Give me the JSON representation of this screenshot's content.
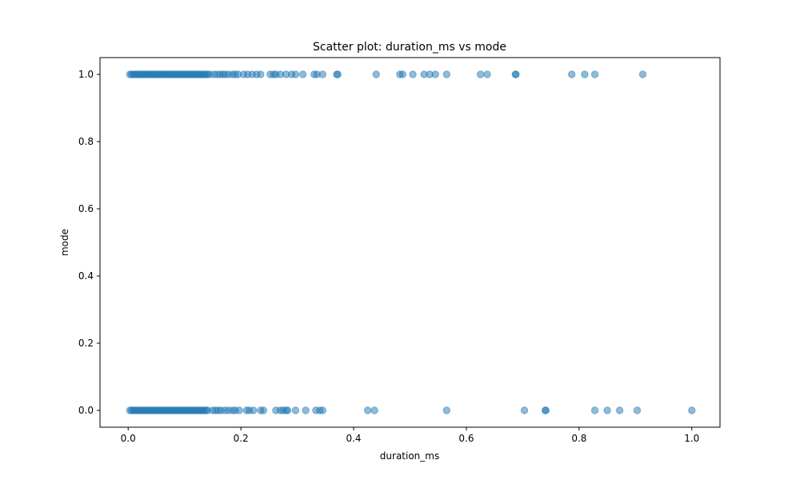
{
  "chart_data": {
    "type": "scatter",
    "title": "Scatter plot: duration_ms vs mode",
    "xlabel": "duration_ms",
    "ylabel": "mode",
    "xlim": [
      -0.05,
      1.05
    ],
    "ylim": [
      -0.05,
      1.05
    ],
    "xticks": [
      0.0,
      0.2,
      0.4,
      0.6,
      0.8,
      1.0
    ],
    "yticks": [
      0.0,
      0.2,
      0.4,
      0.6,
      0.8,
      1.0
    ],
    "xtick_labels": [
      "0.0",
      "0.2",
      "0.4",
      "0.6",
      "0.8",
      "1.0"
    ],
    "ytick_labels": [
      "0.0",
      "0.2",
      "0.4",
      "0.6",
      "0.8",
      "1.0"
    ],
    "grid": false,
    "marker_color": "#1f77b4",
    "marker_alpha": 0.5,
    "series": [
      {
        "points": [
          [
            0.003,
            1
          ],
          [
            0.006,
            1
          ],
          [
            0.009,
            1
          ],
          [
            0.012,
            1
          ],
          [
            0.015,
            1
          ],
          [
            0.018,
            1
          ],
          [
            0.021,
            1
          ],
          [
            0.024,
            1
          ],
          [
            0.027,
            1
          ],
          [
            0.03,
            1
          ],
          [
            0.033,
            1
          ],
          [
            0.036,
            1
          ],
          [
            0.039,
            1
          ],
          [
            0.042,
            1
          ],
          [
            0.045,
            1
          ],
          [
            0.048,
            1
          ],
          [
            0.051,
            1
          ],
          [
            0.054,
            1
          ],
          [
            0.057,
            1
          ],
          [
            0.06,
            1
          ],
          [
            0.063,
            1
          ],
          [
            0.066,
            1
          ],
          [
            0.069,
            1
          ],
          [
            0.072,
            1
          ],
          [
            0.075,
            1
          ],
          [
            0.078,
            1
          ],
          [
            0.081,
            1
          ],
          [
            0.084,
            1
          ],
          [
            0.087,
            1
          ],
          [
            0.09,
            1
          ],
          [
            0.093,
            1
          ],
          [
            0.096,
            1
          ],
          [
            0.099,
            1
          ],
          [
            0.102,
            1
          ],
          [
            0.105,
            1
          ],
          [
            0.108,
            1
          ],
          [
            0.111,
            1
          ],
          [
            0.114,
            1
          ],
          [
            0.117,
            1
          ],
          [
            0.12,
            1
          ],
          [
            0.123,
            1
          ],
          [
            0.126,
            1
          ],
          [
            0.129,
            1
          ],
          [
            0.132,
            1
          ],
          [
            0.135,
            1
          ],
          [
            0.138,
            1
          ],
          [
            0.141,
            1
          ],
          [
            0.145,
            1
          ],
          [
            0.152,
            1
          ],
          [
            0.158,
            1
          ],
          [
            0.163,
            1
          ],
          [
            0.168,
            1
          ],
          [
            0.172,
            1
          ],
          [
            0.178,
            1
          ],
          [
            0.185,
            1
          ],
          [
            0.19,
            1
          ],
          [
            0.195,
            1
          ],
          [
            0.205,
            1
          ],
          [
            0.212,
            1
          ],
          [
            0.22,
            1
          ],
          [
            0.228,
            1
          ],
          [
            0.235,
            1
          ],
          [
            0.252,
            1
          ],
          [
            0.258,
            1
          ],
          [
            0.262,
            1
          ],
          [
            0.27,
            1
          ],
          [
            0.28,
            1
          ],
          [
            0.29,
            1
          ],
          [
            0.297,
            1
          ],
          [
            0.31,
            1
          ],
          [
            0.33,
            1
          ],
          [
            0.335,
            1
          ],
          [
            0.345,
            1
          ],
          [
            0.37,
            1
          ],
          [
            0.372,
            1
          ],
          [
            0.44,
            1
          ],
          [
            0.482,
            1
          ],
          [
            0.487,
            1
          ],
          [
            0.505,
            1
          ],
          [
            0.525,
            1
          ],
          [
            0.535,
            1
          ],
          [
            0.545,
            1
          ],
          [
            0.565,
            1
          ],
          [
            0.625,
            1
          ],
          [
            0.637,
            1
          ],
          [
            0.687,
            1
          ],
          [
            0.688,
            1
          ],
          [
            0.787,
            1
          ],
          [
            0.81,
            1
          ],
          [
            0.828,
            1
          ],
          [
            0.913,
            1
          ],
          [
            0.003,
            0
          ],
          [
            0.006,
            0
          ],
          [
            0.009,
            0
          ],
          [
            0.012,
            0
          ],
          [
            0.015,
            0
          ],
          [
            0.018,
            0
          ],
          [
            0.021,
            0
          ],
          [
            0.024,
            0
          ],
          [
            0.027,
            0
          ],
          [
            0.03,
            0
          ],
          [
            0.033,
            0
          ],
          [
            0.036,
            0
          ],
          [
            0.039,
            0
          ],
          [
            0.042,
            0
          ],
          [
            0.045,
            0
          ],
          [
            0.048,
            0
          ],
          [
            0.051,
            0
          ],
          [
            0.054,
            0
          ],
          [
            0.057,
            0
          ],
          [
            0.06,
            0
          ],
          [
            0.063,
            0
          ],
          [
            0.066,
            0
          ],
          [
            0.069,
            0
          ],
          [
            0.072,
            0
          ],
          [
            0.075,
            0
          ],
          [
            0.078,
            0
          ],
          [
            0.081,
            0
          ],
          [
            0.084,
            0
          ],
          [
            0.087,
            0
          ],
          [
            0.09,
            0
          ],
          [
            0.093,
            0
          ],
          [
            0.096,
            0
          ],
          [
            0.099,
            0
          ],
          [
            0.102,
            0
          ],
          [
            0.105,
            0
          ],
          [
            0.108,
            0
          ],
          [
            0.111,
            0
          ],
          [
            0.114,
            0
          ],
          [
            0.117,
            0
          ],
          [
            0.12,
            0
          ],
          [
            0.123,
            0
          ],
          [
            0.126,
            0
          ],
          [
            0.129,
            0
          ],
          [
            0.132,
            0
          ],
          [
            0.135,
            0
          ],
          [
            0.138,
            0
          ],
          [
            0.141,
            0
          ],
          [
            0.15,
            0
          ],
          [
            0.155,
            0
          ],
          [
            0.16,
            0
          ],
          [
            0.165,
            0
          ],
          [
            0.172,
            0
          ],
          [
            0.178,
            0
          ],
          [
            0.185,
            0
          ],
          [
            0.19,
            0
          ],
          [
            0.197,
            0
          ],
          [
            0.21,
            0
          ],
          [
            0.215,
            0
          ],
          [
            0.222,
            0
          ],
          [
            0.235,
            0
          ],
          [
            0.24,
            0
          ],
          [
            0.262,
            0
          ],
          [
            0.27,
            0
          ],
          [
            0.275,
            0
          ],
          [
            0.28,
            0
          ],
          [
            0.283,
            0
          ],
          [
            0.297,
            0
          ],
          [
            0.315,
            0
          ],
          [
            0.333,
            0
          ],
          [
            0.34,
            0
          ],
          [
            0.345,
            0
          ],
          [
            0.425,
            0
          ],
          [
            0.437,
            0
          ],
          [
            0.565,
            0
          ],
          [
            0.703,
            0
          ],
          [
            0.74,
            0
          ],
          [
            0.741,
            0
          ],
          [
            0.828,
            0
          ],
          [
            0.85,
            0
          ],
          [
            0.872,
            0
          ],
          [
            0.903,
            0
          ],
          [
            1.0,
            0
          ]
        ]
      }
    ]
  }
}
